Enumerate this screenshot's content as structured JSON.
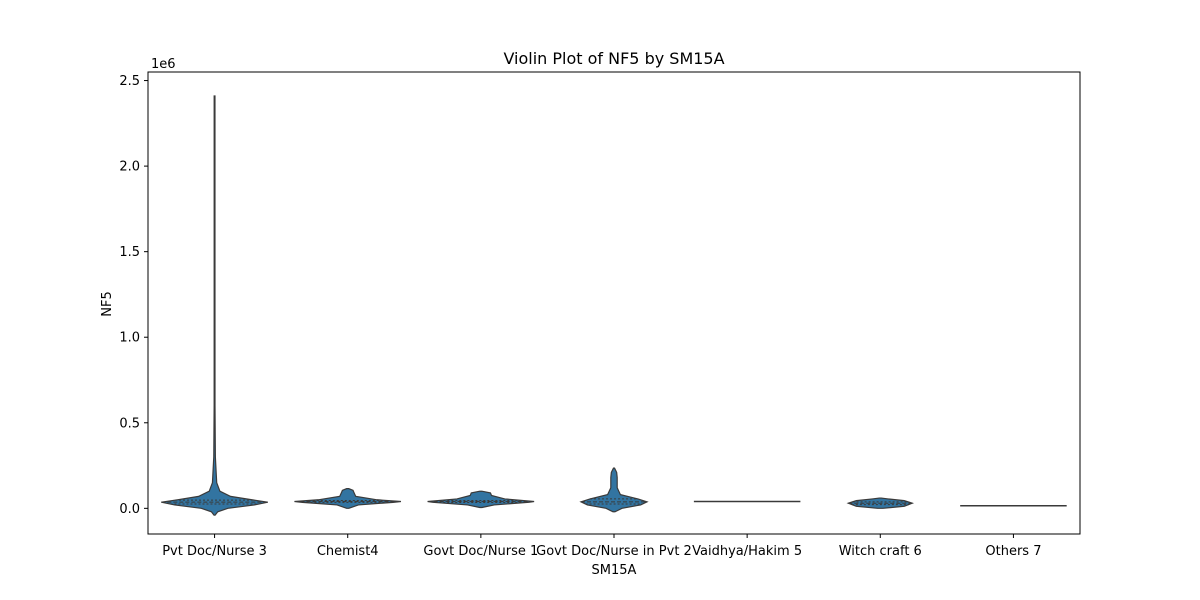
{
  "chart_data": {
    "type": "violin",
    "title": "Violin Plot of NF5 by SM15A",
    "xlabel": "SM15A",
    "ylabel": "NF5",
    "y_offset_text": "1e6",
    "ylim": [
      -150000,
      2550000
    ],
    "yticks": [
      0,
      500000,
      1000000,
      1500000,
      2000000,
      2500000
    ],
    "ytick_labels": [
      "0.0",
      "0.5",
      "1.0",
      "1.5",
      "2.0",
      "2.5"
    ],
    "violin_color": "#3274a1",
    "edge_color": "#3a3a3a",
    "grid": false,
    "categories": [
      "Pvt Doc/Nurse 3",
      "Chemist4",
      "Govt Doc/Nurse 1",
      "Govt Doc/Nurse in Pvt 2",
      "Vaidhya/Hakim 5",
      "Witch craft 6",
      "Others 7"
    ],
    "violins": [
      {
        "category": "Pvt Doc/Nurse 3",
        "median": 36000,
        "q1": 25000,
        "q3": 48000,
        "min": -40000,
        "max": 2410000,
        "profile": [
          [
            -40000,
            0.01
          ],
          [
            -20000,
            0.06
          ],
          [
            0,
            0.25
          ],
          [
            20000,
            0.75
          ],
          [
            36000,
            1.0
          ],
          [
            50000,
            0.7
          ],
          [
            70000,
            0.3
          ],
          [
            100000,
            0.1
          ],
          [
            150000,
            0.04
          ],
          [
            300000,
            0.015
          ],
          [
            600000,
            0.008
          ],
          [
            1200000,
            0.006
          ],
          [
            2410000,
            0.005
          ]
        ]
      },
      {
        "category": "Chemist4",
        "median": 40000,
        "q1": 35000,
        "q3": 46000,
        "min": 0,
        "max": 115000,
        "profile": [
          [
            0,
            0.02
          ],
          [
            20000,
            0.2
          ],
          [
            35000,
            0.85
          ],
          [
            40000,
            1.0
          ],
          [
            50000,
            0.55
          ],
          [
            70000,
            0.15
          ],
          [
            90000,
            0.12
          ],
          [
            105000,
            0.1
          ],
          [
            115000,
            0.02
          ]
        ]
      },
      {
        "category": "Govt Doc/Nurse 1",
        "median": 40000,
        "q1": 34000,
        "q3": 46000,
        "min": 5000,
        "max": 100000,
        "profile": [
          [
            5000,
            0.02
          ],
          [
            20000,
            0.25
          ],
          [
            35000,
            0.9
          ],
          [
            40000,
            1.0
          ],
          [
            55000,
            0.45
          ],
          [
            75000,
            0.2
          ],
          [
            90000,
            0.18
          ],
          [
            100000,
            0.02
          ]
        ]
      },
      {
        "category": "Govt Doc/Nurse in Pvt 2",
        "median": 38000,
        "q1": 25000,
        "q3": 55000,
        "min": -20000,
        "max": 235000,
        "profile": [
          [
            -20000,
            0.02
          ],
          [
            0,
            0.15
          ],
          [
            20000,
            0.5
          ],
          [
            38000,
            0.62
          ],
          [
            55000,
            0.45
          ],
          [
            80000,
            0.12
          ],
          [
            120000,
            0.06
          ],
          [
            180000,
            0.06
          ],
          [
            210000,
            0.05
          ],
          [
            235000,
            0.01
          ]
        ]
      },
      {
        "category": "Vaidhya/Hakim 5",
        "median": 40000,
        "q1": 40000,
        "q3": 40000,
        "min": 39000,
        "max": 41000,
        "profile": [
          [
            39000,
            1.0
          ],
          [
            41000,
            1.0
          ]
        ]
      },
      {
        "category": "Witch craft 6",
        "median": 30000,
        "q1": 22000,
        "q3": 38000,
        "min": 0,
        "max": 60000,
        "profile": [
          [
            0,
            0.05
          ],
          [
            12000,
            0.45
          ],
          [
            30000,
            0.6
          ],
          [
            45000,
            0.45
          ],
          [
            55000,
            0.15
          ],
          [
            60000,
            0.02
          ]
        ]
      },
      {
        "category": "Others 7",
        "median": 15000,
        "q1": 15000,
        "q3": 15000,
        "min": 14000,
        "max": 16000,
        "profile": [
          [
            14000,
            1.0
          ],
          [
            16000,
            1.0
          ]
        ]
      }
    ]
  }
}
